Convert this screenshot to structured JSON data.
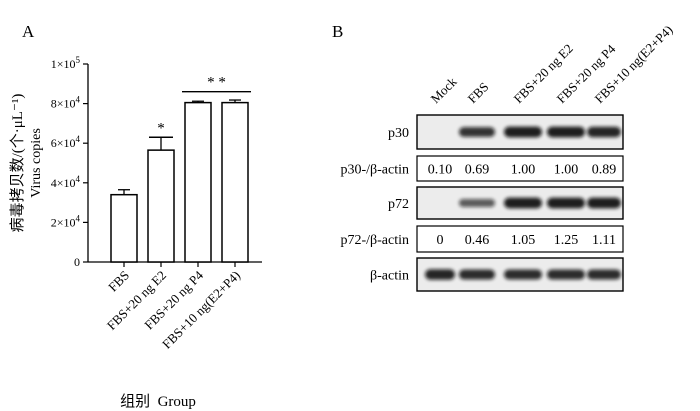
{
  "panel_a": {
    "letter": "A",
    "ylabel_cn": "病毒拷贝数/(个·μL⁻¹)",
    "ylabel_en": "Virus copies",
    "xlabel": "组别  Group"
  },
  "panel_b": {
    "letter": "B",
    "lanes": [
      "Mock",
      "FBS",
      "FBS+20 ng E2",
      "FBS+20 ng P4",
      "FBS+10 ng(E2+P4)"
    ],
    "rows": [
      {
        "label": "p30",
        "kind": "blot",
        "intensities": [
          0,
          0.8,
          0.95,
          0.95,
          0.9
        ]
      },
      {
        "label": "p30-/β-actin",
        "kind": "ratio",
        "values": [
          "0.10",
          "0.69",
          "1.00",
          "1.00",
          "0.89"
        ]
      },
      {
        "label": "p72",
        "kind": "blot",
        "intensities": [
          0,
          0.5,
          0.95,
          0.95,
          0.95
        ]
      },
      {
        "label": "p72-/β-actin",
        "kind": "ratio",
        "values": [
          "0",
          "0.46",
          "1.05",
          "1.25",
          "1.11"
        ]
      },
      {
        "label": "β-actin",
        "kind": "blot",
        "intensities": [
          0.9,
          0.85,
          0.85,
          0.85,
          0.85
        ]
      }
    ]
  },
  "chart_data": {
    "type": "bar",
    "categories": [
      "FBS",
      "FBS+20 ng E2",
      "FBS+20 ng P4",
      "FBS+10 ng(E2+P4)"
    ],
    "values": [
      34000,
      56500,
      80500,
      80500
    ],
    "errors": [
      2500,
      6500,
      700,
      1300
    ],
    "ylabel": "病毒拷贝数/(个·μL⁻¹) Virus copies",
    "xlabel": "组别  Group",
    "ylim": [
      0,
      100000
    ],
    "yticks": [
      {
        "value": 0,
        "base": "0",
        "exp": ""
      },
      {
        "value": 20000,
        "base": "2×10",
        "exp": "4"
      },
      {
        "value": 40000,
        "base": "4×10",
        "exp": "4"
      },
      {
        "value": 60000,
        "base": "6×10",
        "exp": "4"
      },
      {
        "value": 80000,
        "base": "8×10",
        "exp": "4"
      },
      {
        "value": 100000,
        "base": "1×10",
        "exp": "5"
      }
    ],
    "significance": [
      {
        "label": "*",
        "from": 1,
        "to": 1,
        "y": 63000
      },
      {
        "label": "* *",
        "from": 2,
        "to": 3,
        "y": 86000
      }
    ],
    "grid": false,
    "bar_color": "#ffffff",
    "edge_color": "#000000"
  }
}
